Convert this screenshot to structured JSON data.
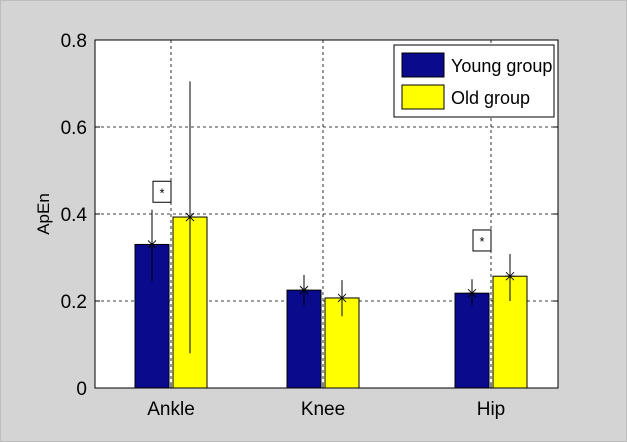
{
  "chart_data": {
    "type": "bar",
    "categories": [
      "Ankle",
      "Knee",
      "Hip"
    ],
    "ylabel": "ApEn",
    "xlabel": "",
    "ylim": [
      0,
      0.8
    ],
    "yticks": [
      "0",
      "0.2",
      "0.4",
      "0.6",
      "0.8"
    ],
    "grid": true,
    "legend_position": "top-right",
    "series": [
      {
        "name": "Young group",
        "color": "#0a0a8c",
        "values": [
          0.33,
          0.225,
          0.218
        ],
        "error_low": [
          0.245,
          0.19,
          0.19
        ],
        "error_high": [
          0.41,
          0.26,
          0.25
        ]
      },
      {
        "name": "Old group",
        "color": "#ffff00",
        "values": [
          0.393,
          0.207,
          0.257
        ],
        "error_low": [
          0.08,
          0.165,
          0.2
        ],
        "error_high": [
          0.705,
          0.248,
          0.308
        ]
      }
    ],
    "annotations": [
      {
        "category": "Ankle",
        "text": "*",
        "y": 0.45
      },
      {
        "category": "Hip",
        "text": "*",
        "y": 0.338
      }
    ]
  }
}
